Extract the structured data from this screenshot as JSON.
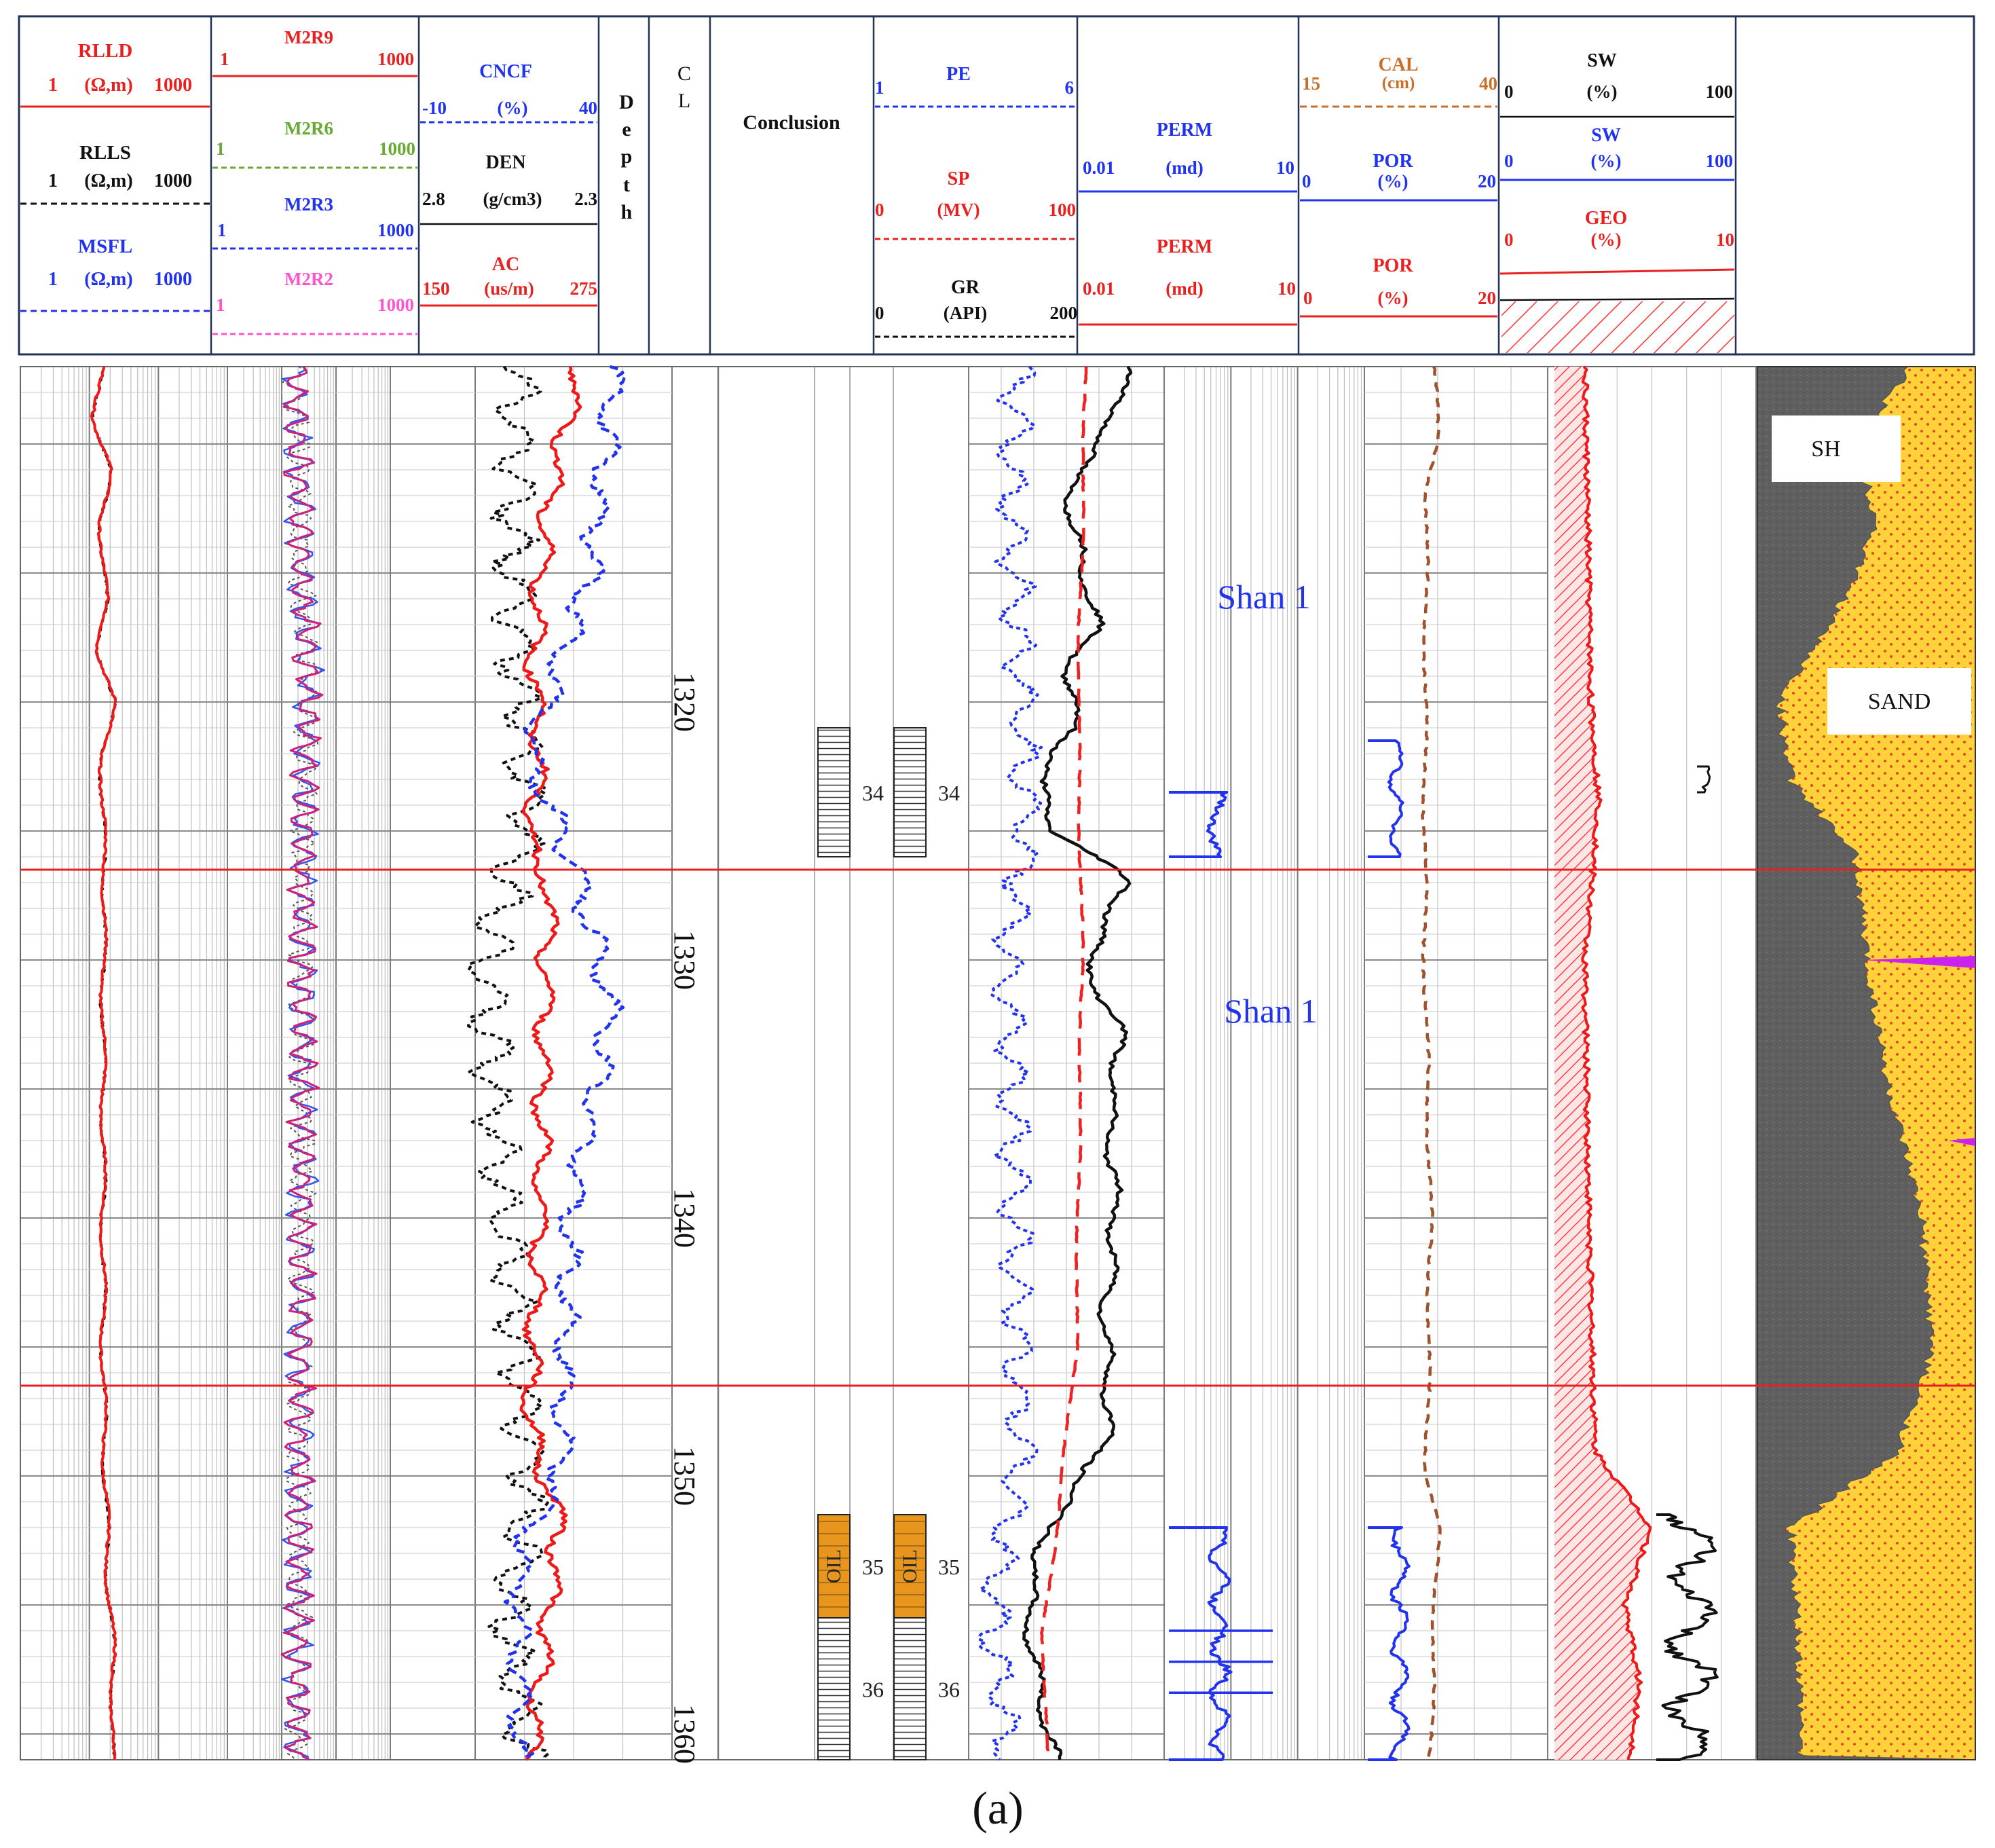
{
  "caption": "(a)",
  "header": {
    "res": {
      "rlld": {
        "name": "RLLD",
        "lo": "1",
        "unit": "(Ω,m)",
        "hi": "1000"
      },
      "rlls": {
        "name": "RLLS",
        "lo": "1",
        "unit": "(Ω,m)",
        "hi": "1000"
      },
      "msfl": {
        "name": "MSFL",
        "lo": "1",
        "unit": "(Ω,m)",
        "hi": "1000"
      }
    },
    "m2r": [
      {
        "name": "M2R9",
        "lo": "1",
        "hi": "1000"
      },
      {
        "name": "M2R6",
        "lo": "1",
        "hi": "1000"
      },
      {
        "name": "M2R3",
        "lo": "1",
        "hi": "1000"
      },
      {
        "name": "M2R2",
        "lo": "1",
        "hi": "1000"
      }
    ],
    "porosity": {
      "cncf": {
        "name": "CNCF",
        "unit": "(%)",
        "lo": "-10",
        "hi": "40"
      },
      "den": {
        "name": "DEN",
        "unit": "(g/cm3)",
        "lo": "2.8",
        "hi": "2.3"
      },
      "ac": {
        "name": "AC",
        "unit": "(us/m)",
        "lo": "150",
        "hi": "275"
      }
    },
    "depth_label": [
      "D",
      "e",
      "p",
      "t",
      "h"
    ],
    "cl_label": [
      "C",
      "L"
    ],
    "conclusion": "Conclusion",
    "litho": {
      "pe": {
        "name": "PE",
        "lo": "1",
        "hi": "6"
      },
      "sp": {
        "name": "SP",
        "unit": "(MV)",
        "lo": "0",
        "hi": "100"
      },
      "gr": {
        "name": "GR",
        "unit": "(API)",
        "lo": "0",
        "hi": "200"
      }
    },
    "perm": [
      {
        "name": "PERM",
        "unit": "(md)",
        "lo": "0.01",
        "hi": "10"
      },
      {
        "name": "PERM",
        "unit": "(md)",
        "lo": "0.01",
        "hi": "10"
      }
    ],
    "calpor": {
      "cal": {
        "name": "CAL",
        "unit": "(cm)",
        "lo": "15",
        "hi": "40"
      },
      "por1": {
        "name": "POR",
        "unit": "(%)",
        "lo": "0",
        "hi": "20"
      },
      "por2": {
        "name": "POR",
        "unit": "(%)",
        "lo": "0",
        "hi": "20"
      }
    },
    "sat": {
      "sw1": {
        "name": "SW",
        "unit": "(%)",
        "lo": "0",
        "hi": "100"
      },
      "sw2": {
        "name": "SW",
        "unit": "(%)",
        "lo": "0",
        "hi": "100"
      },
      "geo": {
        "name": "GEO",
        "unit": "(%)",
        "lo": "0",
        "hi": "10"
      }
    }
  },
  "track_text": {
    "formation_label_1": "Shan 1",
    "formation_label_2": "Shan 1",
    "litho_label_sh": "SH",
    "litho_label_sand": "SAND"
  },
  "chart_data": {
    "type": "well-log",
    "depth_range": [
      1307,
      1361
    ],
    "depth_ticks": [
      "1320",
      "1330",
      "1340",
      "1350",
      "1360"
    ],
    "zone_boundaries": [
      1326.5,
      1346.5
    ],
    "layers": [
      {
        "number": "34",
        "top": 1321.0,
        "bottom": 1326.0,
        "result": "dry"
      },
      {
        "number": "35",
        "top": 1351.5,
        "bottom": 1355.5,
        "result": "oil"
      },
      {
        "number": "36",
        "top": 1355.5,
        "bottom": 1361.0,
        "result": "dry"
      }
    ],
    "curves": {
      "rlld_profile": [
        [
          1307,
          0.39
        ],
        [
          1309,
          0.36
        ],
        [
          1311,
          0.43
        ],
        [
          1313,
          0.39
        ],
        [
          1316,
          0.41
        ],
        [
          1318,
          0.38
        ],
        [
          1320,
          0.45
        ],
        [
          1322,
          0.4
        ],
        [
          1324,
          0.39
        ],
        [
          1326,
          0.41
        ],
        [
          1330,
          0.4
        ],
        [
          1340,
          0.4
        ],
        [
          1346,
          0.4
        ],
        [
          1350,
          0.41
        ],
        [
          1353,
          0.42
        ],
        [
          1355,
          0.43
        ],
        [
          1357,
          0.45
        ],
        [
          1361,
          0.44
        ]
      ],
      "gr_profile": [
        [
          1307,
          0.8
        ],
        [
          1309,
          0.75
        ],
        [
          1311,
          0.55
        ],
        [
          1313,
          0.52
        ],
        [
          1315,
          0.6
        ],
        [
          1317,
          0.65
        ],
        [
          1319,
          0.5
        ],
        [
          1321,
          0.55
        ],
        [
          1323,
          0.35
        ],
        [
          1325,
          0.45
        ],
        [
          1327,
          0.82
        ],
        [
          1330,
          0.6
        ],
        [
          1333,
          0.78
        ],
        [
          1336,
          0.72
        ],
        [
          1340,
          0.75
        ],
        [
          1344,
          0.7
        ],
        [
          1348,
          0.72
        ],
        [
          1350,
          0.6
        ],
        [
          1352,
          0.4
        ],
        [
          1355,
          0.3
        ],
        [
          1358,
          0.35
        ],
        [
          1361,
          0.45
        ]
      ],
      "sw_profile": [
        [
          1307,
          0.15
        ],
        [
          1320,
          0.18
        ],
        [
          1324,
          0.22
        ],
        [
          1330,
          0.15
        ],
        [
          1340,
          0.17
        ],
        [
          1349,
          0.2
        ],
        [
          1352,
          0.48
        ],
        [
          1355,
          0.35
        ],
        [
          1358,
          0.42
        ],
        [
          1361,
          0.38
        ]
      ],
      "shale_fraction": [
        [
          1307,
          0.7
        ],
        [
          1310,
          0.45
        ],
        [
          1313,
          0.55
        ],
        [
          1316,
          0.4
        ],
        [
          1320,
          0.1
        ],
        [
          1323,
          0.15
        ],
        [
          1326,
          0.45
        ],
        [
          1330,
          0.5
        ],
        [
          1335,
          0.6
        ],
        [
          1340,
          0.75
        ],
        [
          1345,
          0.8
        ],
        [
          1349,
          0.65
        ],
        [
          1352,
          0.15
        ],
        [
          1356,
          0.18
        ],
        [
          1361,
          0.2
        ]
      ]
    }
  }
}
